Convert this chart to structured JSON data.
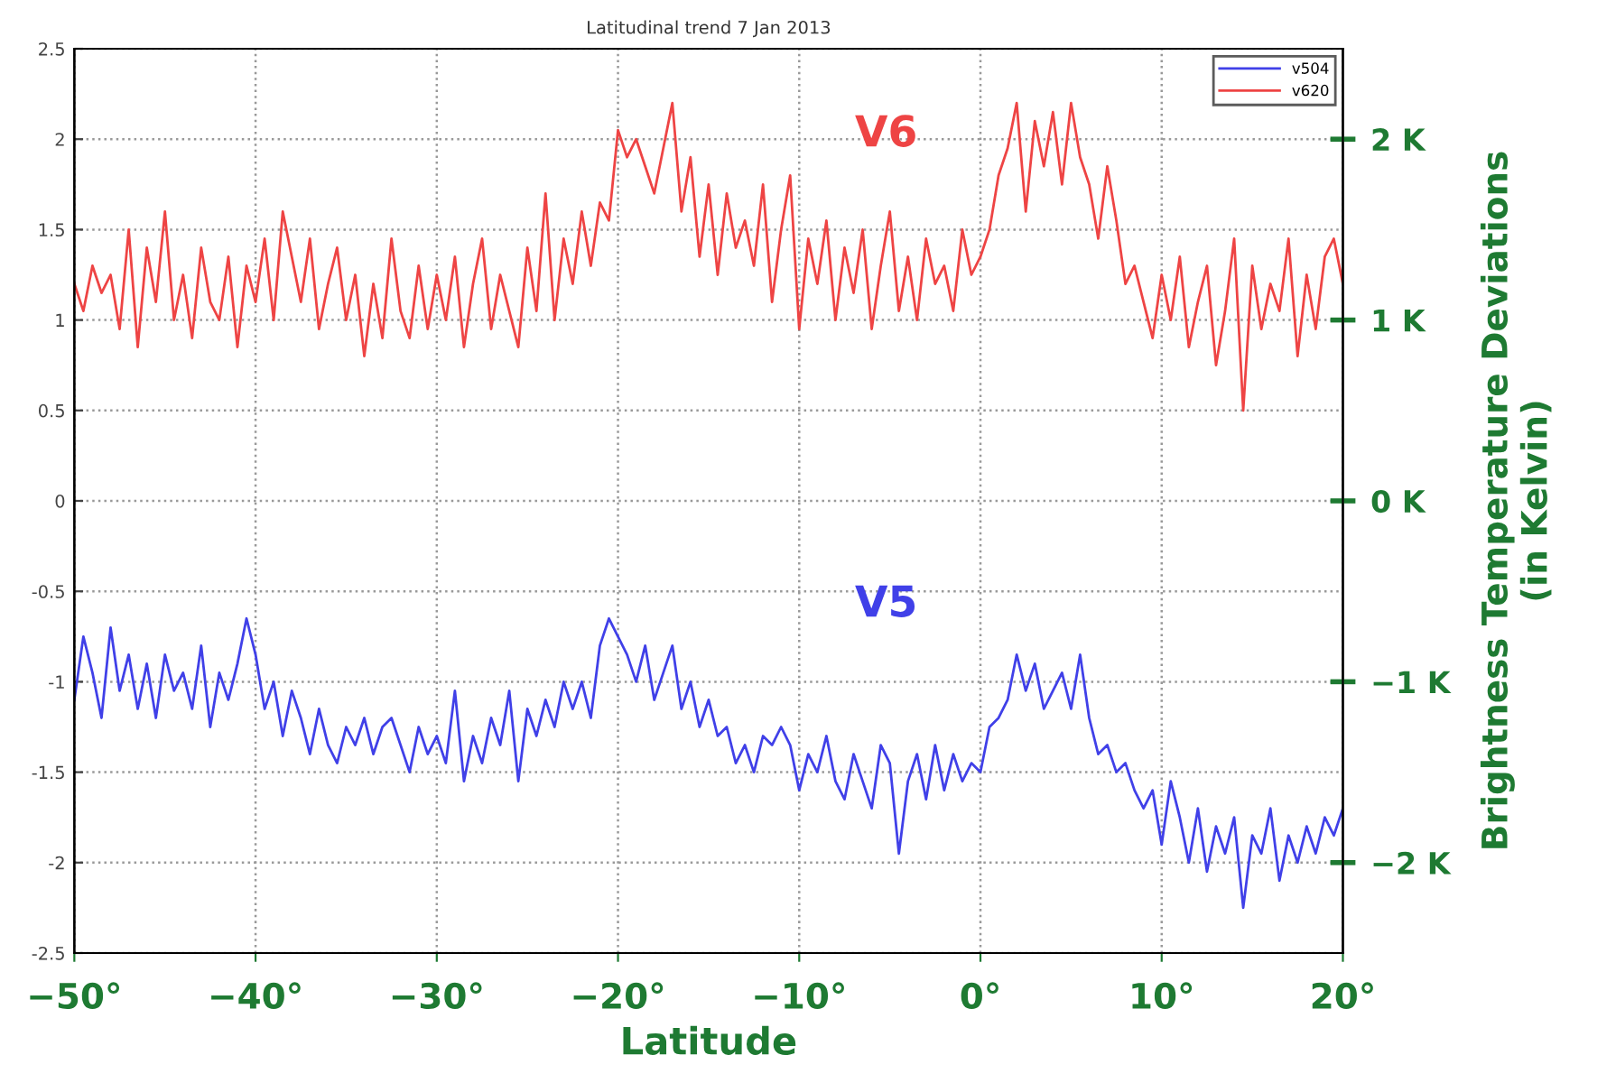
{
  "chart_data": {
    "type": "line",
    "title": "Latitudinal trend 7 Jan 2013",
    "xlabel": "Latitude",
    "y2label": "Brightness Temperature Deviations\n(in Kelvin)",
    "x": [
      -50,
      -49.5,
      -49,
      -48.5,
      -48,
      -47.5,
      -47,
      -46.5,
      -46,
      -45.5,
      -45,
      -44.5,
      -44,
      -43.5,
      -43,
      -42.5,
      -42,
      -41.5,
      -41,
      -40.5,
      -40,
      -39.5,
      -39,
      -38.5,
      -38,
      -37.5,
      -37,
      -36.5,
      -36,
      -35.5,
      -35,
      -34.5,
      -34,
      -33.5,
      -33,
      -32.5,
      -32,
      -31.5,
      -31,
      -30.5,
      -30,
      -29.5,
      -29,
      -28.5,
      -28,
      -27.5,
      -27,
      -26.5,
      -26,
      -25.5,
      -25,
      -24.5,
      -24,
      -23.5,
      -23,
      -22.5,
      -22,
      -21.5,
      -21,
      -20.5,
      -20,
      -19.5,
      -19,
      -18.5,
      -18,
      -17.5,
      -17,
      -16.5,
      -16,
      -15.5,
      -15,
      -14.5,
      -14,
      -13.5,
      -13,
      -12.5,
      -12,
      -11.5,
      -11,
      -10.5,
      -10,
      -9.5,
      -9,
      -8.5,
      -8,
      -7.5,
      -7,
      -6.5,
      -6,
      -5.5,
      -5,
      -4.5,
      -4,
      -3.5,
      -3,
      -2.5,
      -2,
      -1.5,
      -1,
      -0.5,
      0,
      0.5,
      1,
      1.5,
      2,
      2.5,
      3,
      3.5,
      4,
      4.5,
      5,
      5.5,
      6,
      6.5,
      7,
      7.5,
      8,
      8.5,
      9,
      9.5,
      10,
      10.5,
      11,
      11.5,
      12,
      12.5,
      13,
      13.5,
      14,
      14.5,
      15,
      15.5,
      16,
      16.5,
      17,
      17.5,
      18,
      18.5,
      19,
      19.5,
      20
    ],
    "series": [
      {
        "name": "v504",
        "color": "#4040e8",
        "values": [
          -1.1,
          -0.75,
          -0.95,
          -1.2,
          -0.7,
          -1.05,
          -0.85,
          -1.15,
          -0.9,
          -1.2,
          -0.85,
          -1.05,
          -0.95,
          -1.15,
          -0.8,
          -1.25,
          -0.95,
          -1.1,
          -0.9,
          -0.65,
          -0.85,
          -1.15,
          -1.0,
          -1.3,
          -1.05,
          -1.2,
          -1.4,
          -1.15,
          -1.35,
          -1.45,
          -1.25,
          -1.35,
          -1.2,
          -1.4,
          -1.25,
          -1.2,
          -1.35,
          -1.5,
          -1.25,
          -1.4,
          -1.3,
          -1.45,
          -1.05,
          -1.55,
          -1.3,
          -1.45,
          -1.2,
          -1.35,
          -1.05,
          -1.55,
          -1.15,
          -1.3,
          -1.1,
          -1.25,
          -1.0,
          -1.15,
          -1.0,
          -1.2,
          -0.8,
          -0.65,
          -0.75,
          -0.85,
          -1.0,
          -0.8,
          -1.1,
          -0.95,
          -0.8,
          -1.15,
          -1.0,
          -1.25,
          -1.1,
          -1.3,
          -1.25,
          -1.45,
          -1.35,
          -1.5,
          -1.3,
          -1.35,
          -1.25,
          -1.35,
          -1.6,
          -1.4,
          -1.5,
          -1.3,
          -1.55,
          -1.65,
          -1.4,
          -1.55,
          -1.7,
          -1.35,
          -1.45,
          -1.95,
          -1.55,
          -1.4,
          -1.65,
          -1.35,
          -1.6,
          -1.4,
          -1.55,
          -1.45,
          -1.5,
          -1.25,
          -1.2,
          -1.1,
          -0.85,
          -1.05,
          -0.9,
          -1.15,
          -1.05,
          -0.95,
          -1.15,
          -0.85,
          -1.2,
          -1.4,
          -1.35,
          -1.5,
          -1.45,
          -1.6,
          -1.7,
          -1.6,
          -1.9,
          -1.55,
          -1.75,
          -2.0,
          -1.7,
          -2.05,
          -1.8,
          -1.95,
          -1.75,
          -2.25,
          -1.85,
          -1.95,
          -1.7,
          -2.1,
          -1.85,
          -2.0,
          -1.8,
          -1.95,
          -1.75,
          -1.85,
          -1.7
        ]
      },
      {
        "name": "v620",
        "color": "#ee4444",
        "values": [
          1.2,
          1.05,
          1.3,
          1.15,
          1.25,
          0.95,
          1.5,
          0.85,
          1.4,
          1.1,
          1.6,
          1.0,
          1.25,
          0.9,
          1.4,
          1.1,
          1.0,
          1.35,
          0.85,
          1.3,
          1.1,
          1.45,
          1.0,
          1.6,
          1.35,
          1.1,
          1.45,
          0.95,
          1.2,
          1.4,
          1.0,
          1.25,
          0.8,
          1.2,
          0.9,
          1.45,
          1.05,
          0.9,
          1.3,
          0.95,
          1.25,
          1.0,
          1.35,
          0.85,
          1.2,
          1.45,
          0.95,
          1.25,
          1.05,
          0.85,
          1.4,
          1.05,
          1.7,
          1.0,
          1.45,
          1.2,
          1.6,
          1.3,
          1.65,
          1.55,
          2.05,
          1.9,
          2.0,
          1.85,
          1.7,
          1.95,
          2.2,
          1.6,
          1.9,
          1.35,
          1.75,
          1.25,
          1.7,
          1.4,
          1.55,
          1.3,
          1.75,
          1.1,
          1.5,
          1.8,
          0.95,
          1.45,
          1.2,
          1.55,
          1.0,
          1.4,
          1.15,
          1.5,
          0.95,
          1.3,
          1.6,
          1.05,
          1.35,
          1.0,
          1.45,
          1.2,
          1.3,
          1.05,
          1.5,
          1.25,
          1.35,
          1.5,
          1.8,
          1.95,
          2.2,
          1.6,
          2.1,
          1.85,
          2.15,
          1.75,
          2.2,
          1.9,
          1.75,
          1.45,
          1.85,
          1.55,
          1.2,
          1.3,
          1.1,
          0.9,
          1.25,
          1.0,
          1.35,
          0.85,
          1.1,
          1.3,
          0.75,
          1.05,
          1.45,
          0.5,
          1.3,
          0.95,
          1.2,
          1.05,
          1.45,
          0.8,
          1.25,
          0.95,
          1.35,
          1.45,
          1.2
        ]
      }
    ],
    "xlim": [
      -50,
      20
    ],
    "xticks": [
      {
        "value": -50,
        "label": "−50°"
      },
      {
        "value": -40,
        "label": "−40°"
      },
      {
        "value": -30,
        "label": "−30°"
      },
      {
        "value": -20,
        "label": "−20°"
      },
      {
        "value": -10,
        "label": "−10°"
      },
      {
        "value": 0,
        "label": "0°"
      },
      {
        "value": 10,
        "label": "10°"
      },
      {
        "value": 20,
        "label": "20°"
      }
    ],
    "ylim": [
      -2.5,
      2.5
    ],
    "yticks": [
      -2.5,
      -2,
      -1.5,
      -1,
      -0.5,
      0,
      0.5,
      1,
      1.5,
      2,
      2.5
    ],
    "y2lim": [
      -2.5,
      2.5
    ],
    "y2ticks": [
      {
        "value": -2,
        "label": "−2 K"
      },
      {
        "value": -1,
        "label": "−1 K"
      },
      {
        "value": 0,
        "label": "0 K"
      },
      {
        "value": 1,
        "label": "1 K"
      },
      {
        "value": 2,
        "label": "2 K"
      }
    ],
    "annotations": [
      "V6",
      "V5"
    ],
    "grid": true,
    "legend": "top right"
  }
}
